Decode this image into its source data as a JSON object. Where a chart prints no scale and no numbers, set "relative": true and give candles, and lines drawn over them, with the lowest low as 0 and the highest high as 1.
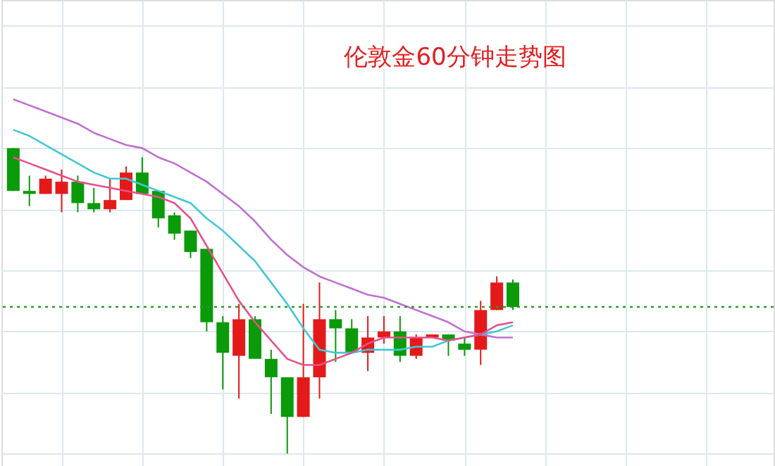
{
  "chart_data": {
    "type": "candlestick",
    "title": "伦敦金60分钟走势图",
    "relative": true,
    "grid": true,
    "tick_labels": false,
    "categories": [
      null,
      null,
      null,
      null,
      null,
      null,
      null,
      null,
      null,
      null,
      null,
      null,
      null,
      null,
      null,
      null,
      null,
      null,
      null,
      null,
      null,
      null,
      null,
      null,
      null,
      null,
      null,
      null,
      null,
      null,
      null,
      null
    ],
    "ohlc": [
      [
        1.0,
        1.0,
        0.86,
        0.86
      ],
      [
        0.86,
        0.91,
        0.81,
        0.85
      ],
      [
        0.85,
        0.91,
        0.85,
        0.9
      ],
      [
        0.85,
        0.93,
        0.79,
        0.89
      ],
      [
        0.89,
        0.91,
        0.79,
        0.82
      ],
      [
        0.82,
        0.87,
        0.79,
        0.8
      ],
      [
        0.8,
        0.9,
        0.79,
        0.83
      ],
      [
        0.83,
        0.94,
        0.83,
        0.92
      ],
      [
        0.92,
        0.97,
        0.85,
        0.85
      ],
      [
        0.86,
        0.86,
        0.74,
        0.77
      ],
      [
        0.78,
        0.79,
        0.7,
        0.72
      ],
      [
        0.73,
        0.73,
        0.64,
        0.66
      ],
      [
        0.67,
        0.67,
        0.4,
        0.43
      ],
      [
        0.43,
        0.45,
        0.21,
        0.33
      ],
      [
        0.32,
        0.49,
        0.18,
        0.44
      ],
      [
        0.44,
        0.45,
        0.31,
        0.31
      ],
      [
        0.31,
        0.34,
        0.13,
        0.25
      ],
      [
        0.25,
        0.25,
        0.0,
        0.12
      ],
      [
        0.12,
        0.49,
        0.12,
        0.25
      ],
      [
        0.25,
        0.56,
        0.18,
        0.44
      ],
      [
        0.44,
        0.47,
        0.3,
        0.41
      ],
      [
        0.41,
        0.44,
        0.33,
        0.33
      ],
      [
        0.33,
        0.45,
        0.27,
        0.38
      ],
      [
        0.38,
        0.45,
        0.36,
        0.4
      ],
      [
        0.4,
        0.45,
        0.3,
        0.32
      ],
      [
        0.32,
        0.39,
        0.31,
        0.38
      ],
      [
        0.38,
        0.39,
        0.38,
        0.39
      ],
      [
        0.39,
        0.39,
        0.32,
        0.37
      ],
      [
        0.36,
        0.38,
        0.32,
        0.34
      ],
      [
        0.34,
        0.5,
        0.29,
        0.47
      ],
      [
        0.47,
        0.58,
        0.47,
        0.56
      ],
      [
        0.56,
        0.57,
        0.47,
        0.48
      ]
    ],
    "colors": [
      "#0a9a0a",
      "#0a9a0a",
      "#e41a1a",
      "#e41a1a",
      "#0a9a0a",
      "#0a9a0a",
      "#e41a1a",
      "#e41a1a",
      "#0a9a0a",
      "#0a9a0a",
      "#0a9a0a",
      "#0a9a0a",
      "#0a9a0a",
      "#0a9a0a",
      "#e41a1a",
      "#0a9a0a",
      "#0a9a0a",
      "#0a9a0a",
      "#e41a1a",
      "#e41a1a",
      "#0a9a0a",
      "#0a9a0a",
      "#e41a1a",
      "#e41a1a",
      "#0a9a0a",
      "#e41a1a",
      "#e41a1a",
      "#0a9a0a",
      "#0a9a0a",
      "#e41a1a",
      "#e41a1a",
      "#0a9a0a"
    ],
    "series": [
      {
        "type": "line",
        "color": "#c070d0",
        "values": [
          1.16,
          1.14,
          1.12,
          1.1,
          1.08,
          1.05,
          1.03,
          1.01,
          1.0,
          0.97,
          0.95,
          0.92,
          0.89,
          0.85,
          0.81,
          0.76,
          0.7,
          0.65,
          0.61,
          0.58,
          0.56,
          0.54,
          0.52,
          0.51,
          0.49,
          0.47,
          0.45,
          0.43,
          0.4,
          0.39,
          0.38,
          0.38
        ]
      },
      {
        "type": "line",
        "color": "#40c8d8",
        "values": [
          1.06,
          1.04,
          1.01,
          0.98,
          0.95,
          0.92,
          0.9,
          0.9,
          0.88,
          0.86,
          0.84,
          0.82,
          0.77,
          0.73,
          0.68,
          0.63,
          0.56,
          0.49,
          0.41,
          0.34,
          0.33,
          0.33,
          0.34,
          0.34,
          0.34,
          0.35,
          0.35,
          0.37,
          0.38,
          0.39,
          0.4,
          0.42
        ]
      },
      {
        "type": "line",
        "color": "#e8508a",
        "values": [
          0.97,
          0.95,
          0.93,
          0.91,
          0.89,
          0.88,
          0.87,
          0.86,
          0.85,
          0.84,
          0.82,
          0.77,
          0.68,
          0.59,
          0.5,
          0.43,
          0.37,
          0.31,
          0.29,
          0.29,
          0.31,
          0.33,
          0.36,
          0.38,
          0.38,
          0.38,
          0.38,
          0.37,
          0.38,
          0.39,
          0.42,
          0.43
        ]
      }
    ],
    "ref_lines": [
      {
        "axis": "y",
        "value": 0.48,
        "color": "#2a9a2a",
        "line_style": "dotted"
      }
    ]
  }
}
